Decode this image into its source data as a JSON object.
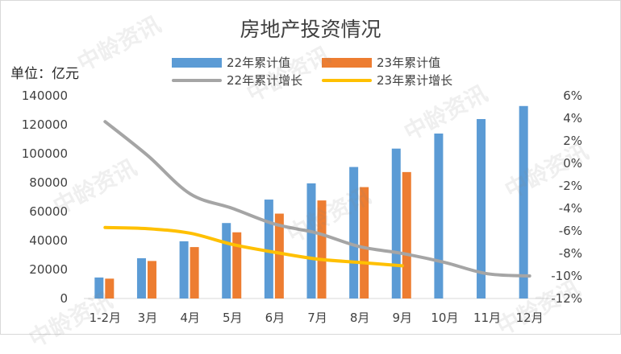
{
  "watermark": "中龄资讯",
  "unit_label": "单位：亿元",
  "chart_data": {
    "type": "bar",
    "title": "房地产投资情况",
    "categories": [
      "1-2月",
      "3月",
      "4月",
      "5月",
      "6月",
      "7月",
      "8月",
      "9月",
      "10月",
      "11月",
      "12月"
    ],
    "series": [
      {
        "name": "22年累计值",
        "kind": "bar",
        "axis": "left",
        "color": "#5b9bd5",
        "values": [
          14500,
          27800,
          39500,
          52100,
          68300,
          79500,
          90800,
          103500,
          113900,
          123900,
          132900
        ]
      },
      {
        "name": "23年累计值",
        "kind": "bar",
        "axis": "left",
        "color": "#ed7d31",
        "values": [
          13700,
          25900,
          35500,
          45700,
          58600,
          67700,
          76900,
          87300,
          null,
          null,
          null
        ]
      },
      {
        "name": "22年累计增长",
        "kind": "line",
        "axis": "right",
        "color": "#a5a5a5",
        "values": [
          3.7,
          0.7,
          -2.7,
          -4.0,
          -5.4,
          -6.2,
          -7.4,
          -8.0,
          -8.8,
          -9.8,
          -10.0
        ]
      },
      {
        "name": "23年累计增长",
        "kind": "line",
        "axis": "right",
        "color": "#ffc000",
        "values": [
          -5.7,
          -5.8,
          -6.2,
          -7.2,
          -7.9,
          -8.5,
          -8.8,
          -9.1,
          null,
          null,
          null
        ]
      }
    ],
    "y_left": {
      "min": 0,
      "max": 140000,
      "ticks": [
        "0",
        "20000",
        "40000",
        "60000",
        "80000",
        "100000",
        "120000",
        "140000"
      ]
    },
    "y_right": {
      "min": -12,
      "max": 6,
      "ticks": [
        "-12%",
        "-10%",
        "-8%",
        "-6%",
        "-4%",
        "-2%",
        "0%",
        "2%",
        "4%",
        "6%"
      ]
    },
    "grid": false,
    "legend_position": "top"
  }
}
